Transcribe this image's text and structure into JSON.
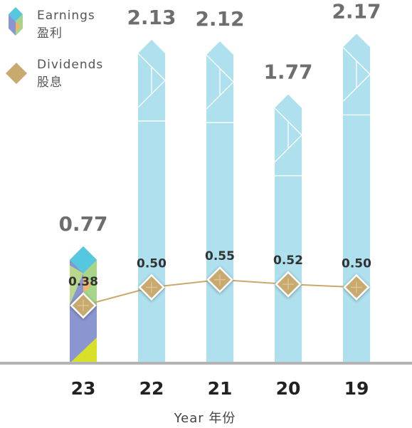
{
  "chart_data": {
    "type": "bar_line",
    "x_label": "Year 年份",
    "categories": [
      "23",
      "22",
      "21",
      "20",
      "19"
    ],
    "series": [
      {
        "name": "Earnings",
        "name_zh": "盈利",
        "type": "bar",
        "color": "#aee0ee",
        "values": [
          0.77,
          2.13,
          2.12,
          1.77,
          2.17
        ]
      },
      {
        "name": "Dividends",
        "name_zh": "股息",
        "type": "line",
        "color": "#c8aa6e",
        "values": [
          0.38,
          0.5,
          0.55,
          0.52,
          0.5
        ],
        "value_labels": [
          "0.38",
          "0.50",
          "0.55",
          "0.52",
          "0.50"
        ]
      }
    ],
    "ylim": [
      0,
      2.2
    ]
  }
}
